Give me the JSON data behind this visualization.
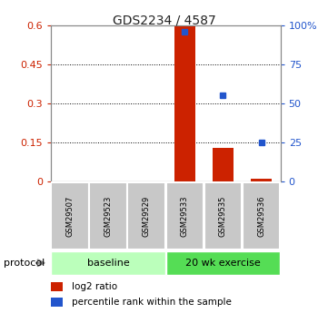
{
  "title": "GDS2234 / 4587",
  "samples": [
    "GSM29507",
    "GSM29523",
    "GSM29529",
    "GSM29533",
    "GSM29535",
    "GSM29536"
  ],
  "log2_ratio": [
    0.0,
    0.0,
    0.0,
    0.6,
    0.13,
    0.01
  ],
  "percentile_rank": [
    null,
    null,
    null,
    96.0,
    55.0,
    25.0
  ],
  "ylim_left": [
    0,
    0.6
  ],
  "ylim_right": [
    0,
    100
  ],
  "yticks_left": [
    0,
    0.15,
    0.3,
    0.45,
    0.6
  ],
  "yticks_left_labels": [
    "0",
    "0.15",
    "0.3",
    "0.45",
    "0.6"
  ],
  "yticks_right": [
    0,
    25,
    50,
    75,
    100
  ],
  "yticks_right_labels": [
    "0",
    "25",
    "50",
    "75",
    "100%"
  ],
  "bar_color": "#cc2200",
  "dot_color": "#2255cc",
  "baseline_color": "#bbffbb",
  "exercise_color": "#55dd55",
  "sample_box_color": "#c8c8c8",
  "protocol_label": "protocol",
  "legend_bar": "log2 ratio",
  "legend_dot": "percentile rank within the sample",
  "title_fontsize": 10,
  "tick_fontsize": 8,
  "sample_fontsize": 6,
  "protocol_fontsize": 8,
  "legend_fontsize": 7.5
}
